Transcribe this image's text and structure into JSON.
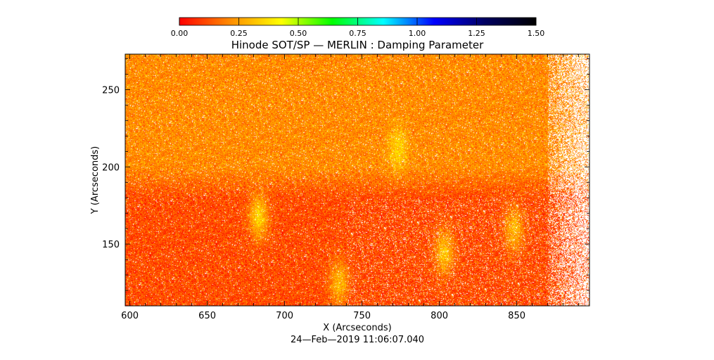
{
  "chart_data": {
    "type": "heatmap",
    "title": "Hinode SOT/SP — MERLIN : Damping Parameter",
    "xlabel": "X (Arcseconds)",
    "ylabel": "Y (Arcseconds)",
    "footer": "24—Feb—2019 11:06:07.040",
    "xlim": [
      597,
      897
    ],
    "ylim": [
      110,
      273
    ],
    "x_ticks": [
      "600",
      "650",
      "700",
      "750",
      "800",
      "850"
    ],
    "x_tick_values": [
      600,
      650,
      700,
      750,
      800,
      850
    ],
    "y_ticks": [
      "150",
      "200",
      "250"
    ],
    "y_tick_values": [
      150,
      200,
      250
    ],
    "colorbar": {
      "range": [
        0.0,
        1.5
      ],
      "tick_labels": [
        "0.00",
        "0.25",
        "0.50",
        "0.75",
        "1.00",
        "1.25",
        "1.50"
      ],
      "tick_values": [
        0.0,
        0.25,
        0.5,
        0.75,
        1.0,
        1.25,
        1.5
      ],
      "colors": [
        "#ff0000",
        "#ff8c00",
        "#ffff00",
        "#00ff00",
        "#00ffff",
        "#0000ff",
        "#000060",
        "#000000"
      ]
    },
    "regions": {
      "background_level": 0.12,
      "upper_band": {
        "y_range": [
          200,
          273
        ],
        "level": 0.22
      },
      "green_patches": [
        {
          "x": 773,
          "y": 212,
          "level": 0.35
        },
        {
          "x": 683,
          "y": 168,
          "level": 0.35
        },
        {
          "x": 803,
          "y": 145,
          "level": 0.32
        },
        {
          "x": 848,
          "y": 160,
          "level": 0.3
        },
        {
          "x": 735,
          "y": 125,
          "level": 0.3
        }
      ],
      "missing_data_right_edge": "x > 870"
    }
  }
}
